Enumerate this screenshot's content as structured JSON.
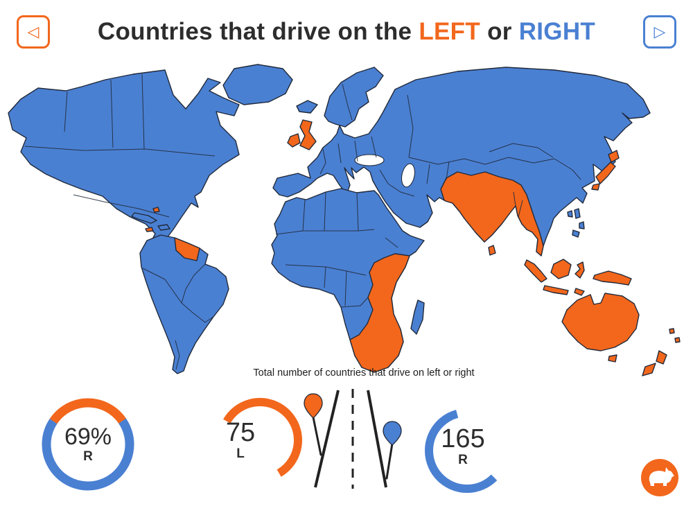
{
  "header": {
    "title_prefix": "Countries that drive on the",
    "left_word": "LEFT",
    "or_word": "or",
    "right_word": "RIGHT",
    "prev_glyph": "◁",
    "next_glyph": "▷"
  },
  "stats": {
    "caption": "Total number of countries that drive on left or right",
    "percent_gauge": {
      "value": "69%",
      "letter": "R",
      "percent": 69
    },
    "left_count_gauge": {
      "value": "75",
      "letter": "L",
      "count": 75
    },
    "right_count_gauge": {
      "value": "165",
      "letter": "R",
      "count": 165
    }
  },
  "colors": {
    "left": "#f2671c",
    "right": "#4a80d2",
    "outline": "#20293a",
    "text": "#2d2d2d"
  },
  "logo": {
    "label": "rhino-logo"
  },
  "chart_data": {
    "type": "choropleth",
    "title": "Countries that drive on the LEFT or RIGHT",
    "legend": [
      {
        "label": "LEFT",
        "color": "#f2671c"
      },
      {
        "label": "RIGHT",
        "color": "#4a80d2"
      }
    ],
    "totals": {
      "left_countries": 75,
      "right_countries": 165,
      "right_share_pct": 69
    },
    "left_regions_shown": [
      "United Kingdom & Ireland",
      "Guyana & Suriname",
      "Jamaica & Bahamas",
      "Southern & Eastern Africa",
      "India, Pakistan & South Asia",
      "Sri Lanka",
      "Thailand & Malay Peninsula",
      "Indonesia & New Guinea",
      "Japan",
      "Australia & Tasmania",
      "New Zealand",
      "Fiji & Pacific islands"
    ],
    "right_regions_shown": [
      "North America",
      "Greenland",
      "South America (except Guyana & Suriname)",
      "Cuba & Hispaniola",
      "Europe (except UK & Ireland)",
      "Russia & Central Asia",
      "China, Korea & Vietnam",
      "Middle East & Arabia",
      "North, West & Central Africa",
      "Madagascar",
      "Philippines & Taiwan"
    ]
  }
}
